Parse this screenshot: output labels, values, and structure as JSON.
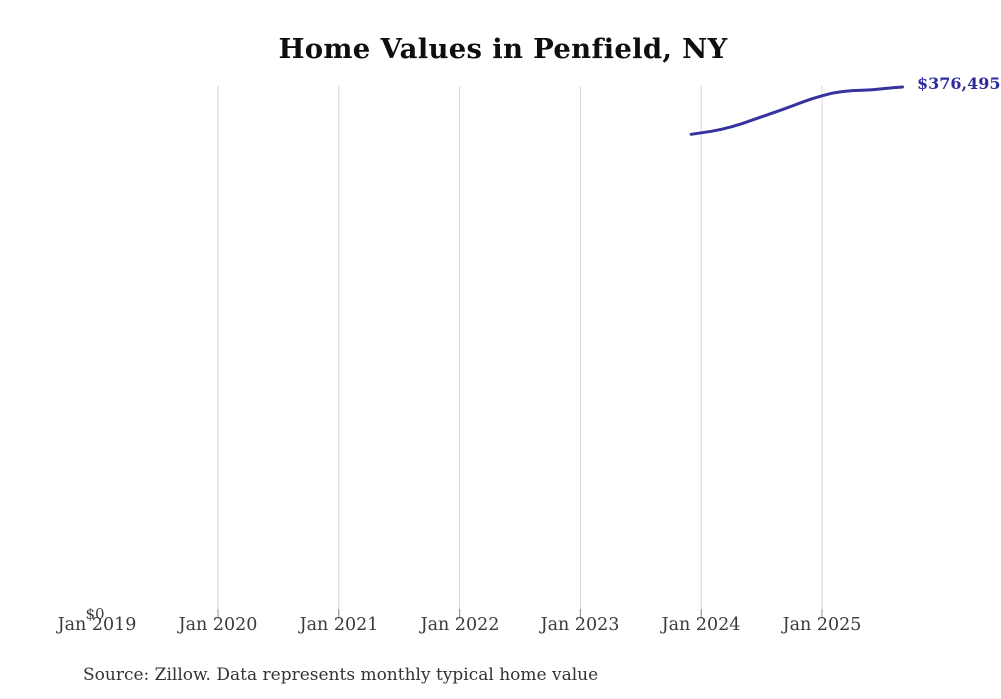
{
  "title": "Home Values in Penfield, NY",
  "source_note": "Source: Zillow. Data represents monthly typical home value",
  "y_axis_zero_label": "$0",
  "end_value_label": "$376,495",
  "colors": {
    "line": "#3632a0",
    "end_label": "#2e2b9e",
    "gridline": "#d6d6d6",
    "tick": "#8f8f8f",
    "title_text": "#0f0f0f",
    "axis_text": "#3a3a3a",
    "source_text": "#333333",
    "background": "#ffffff"
  },
  "chart_data": {
    "type": "line",
    "title": "Home Values in Penfield, NY",
    "xlabel": "",
    "ylabel": "",
    "x_tick_labels": [
      "Jan 2019",
      "Jan 2020",
      "Jan 2021",
      "Jan 2022",
      "Jan 2023",
      "Jan 2024",
      "Jan 2025"
    ],
    "ylim": [
      0,
      376495
    ],
    "grid": "vertical gridlines at each January from Jan 2020 to Jan 2025; no horizontal gridlines; no axis lines",
    "legend_position": "none",
    "end_annotation": "$376,495",
    "series": [
      {
        "name": "Monthly typical home value",
        "points": [
          [
            "2023-12",
            342800
          ],
          [
            "2024-01",
            343900
          ],
          [
            "2024-02",
            345000
          ],
          [
            "2024-03",
            346400
          ],
          [
            "2024-04",
            348200
          ],
          [
            "2024-05",
            350300
          ],
          [
            "2024-06",
            352800
          ],
          [
            "2024-07",
            355300
          ],
          [
            "2024-08",
            357800
          ],
          [
            "2024-09",
            360300
          ],
          [
            "2024-10",
            362900
          ],
          [
            "2024-11",
            365600
          ],
          [
            "2024-12",
            368100
          ],
          [
            "2025-01",
            370200
          ],
          [
            "2025-02",
            372100
          ],
          [
            "2025-03",
            373200
          ],
          [
            "2025-04",
            373900
          ],
          [
            "2025-05",
            374200
          ],
          [
            "2025-06",
            374600
          ],
          [
            "2025-07",
            375200
          ],
          [
            "2025-08",
            375900
          ],
          [
            "2025-09",
            376495
          ]
        ]
      }
    ]
  }
}
